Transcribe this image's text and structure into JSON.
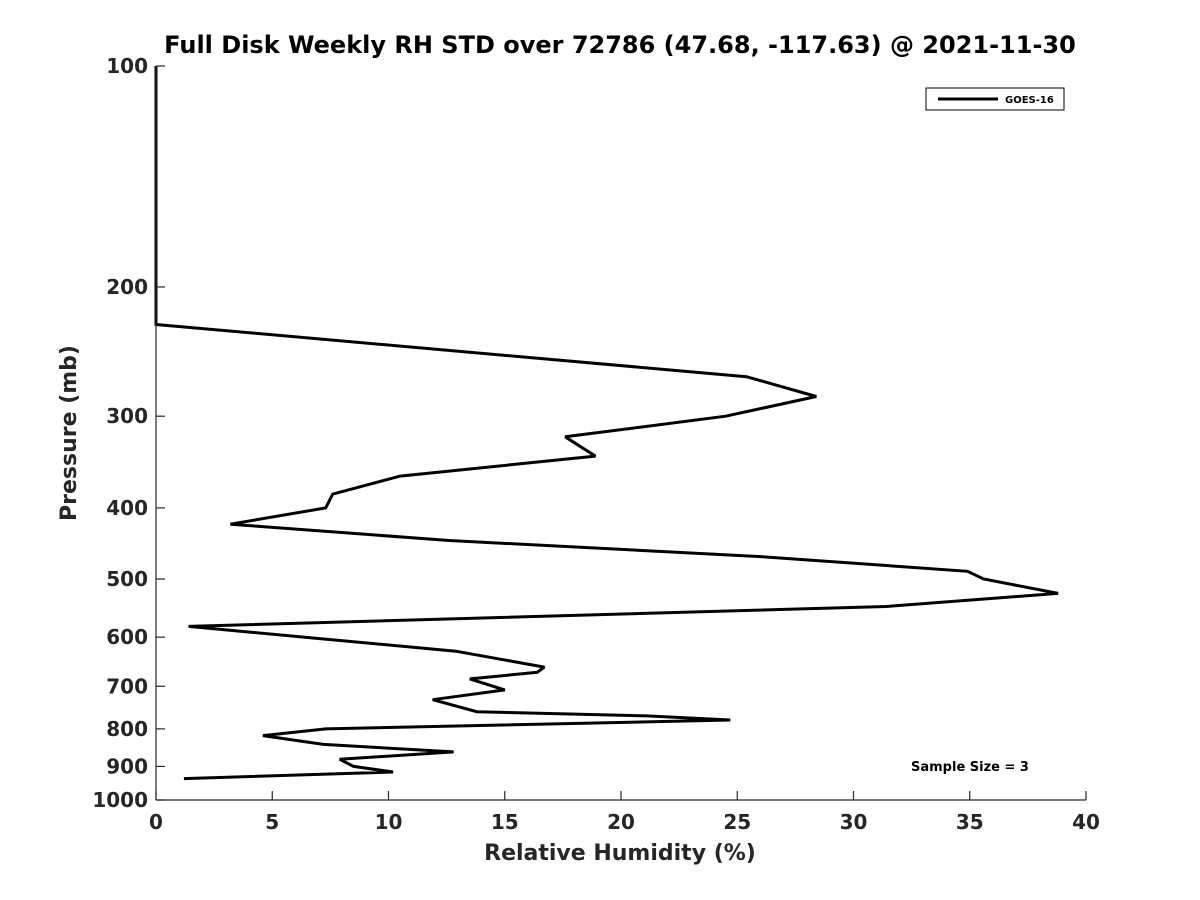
{
  "chart_data": {
    "type": "line",
    "title": "Full Disk Weekly RH STD over 72786 (47.68, -117.63) @ 2021-11-30",
    "xlabel": "Relative Humidity (%)",
    "ylabel": "Pressure (mb)",
    "xlim": [
      0,
      40
    ],
    "ylim": [
      100,
      1000
    ],
    "yscale": "log",
    "yreversed": true,
    "grid": false,
    "xticks": [
      0,
      5,
      10,
      15,
      20,
      25,
      30,
      35,
      40
    ],
    "yticks": [
      100,
      200,
      300,
      400,
      500,
      600,
      700,
      800,
      900,
      1000
    ],
    "legend": {
      "position": "top-right",
      "entries": [
        "GOES-16"
      ]
    },
    "annotation": "Sample Size = 3",
    "series": [
      {
        "name": "GOES-16",
        "color": "#000000",
        "points": [
          {
            "x": 0,
            "y": 100
          },
          {
            "x": 0,
            "y": 200
          },
          {
            "x": 0,
            "y": 225
          },
          {
            "x": 25.4,
            "y": 265
          },
          {
            "x": 28.4,
            "y": 282
          },
          {
            "x": 24.5,
            "y": 300
          },
          {
            "x": 17.6,
            "y": 320
          },
          {
            "x": 18.9,
            "y": 340
          },
          {
            "x": 10.5,
            "y": 362
          },
          {
            "x": 7.6,
            "y": 383
          },
          {
            "x": 7.3,
            "y": 400
          },
          {
            "x": 3.2,
            "y": 421
          },
          {
            "x": 12.6,
            "y": 443
          },
          {
            "x": 26.0,
            "y": 466
          },
          {
            "x": 34.9,
            "y": 488
          },
          {
            "x": 35.6,
            "y": 500
          },
          {
            "x": 38.8,
            "y": 523
          },
          {
            "x": 31.4,
            "y": 545
          },
          {
            "x": 1.4,
            "y": 580
          },
          {
            "x": 6.4,
            "y": 600
          },
          {
            "x": 12.9,
            "y": 627
          },
          {
            "x": 16.7,
            "y": 659
          },
          {
            "x": 16.4,
            "y": 670
          },
          {
            "x": 13.5,
            "y": 684
          },
          {
            "x": 15.0,
            "y": 708
          },
          {
            "x": 11.9,
            "y": 730
          },
          {
            "x": 13.8,
            "y": 758
          },
          {
            "x": 21.1,
            "y": 768
          },
          {
            "x": 24.7,
            "y": 778
          },
          {
            "x": 7.3,
            "y": 800
          },
          {
            "x": 4.6,
            "y": 817
          },
          {
            "x": 7.2,
            "y": 840
          },
          {
            "x": 12.8,
            "y": 860
          },
          {
            "x": 7.9,
            "y": 880
          },
          {
            "x": 8.5,
            "y": 900
          },
          {
            "x": 10.2,
            "y": 916
          },
          {
            "x": 1.2,
            "y": 935
          }
        ]
      }
    ]
  }
}
